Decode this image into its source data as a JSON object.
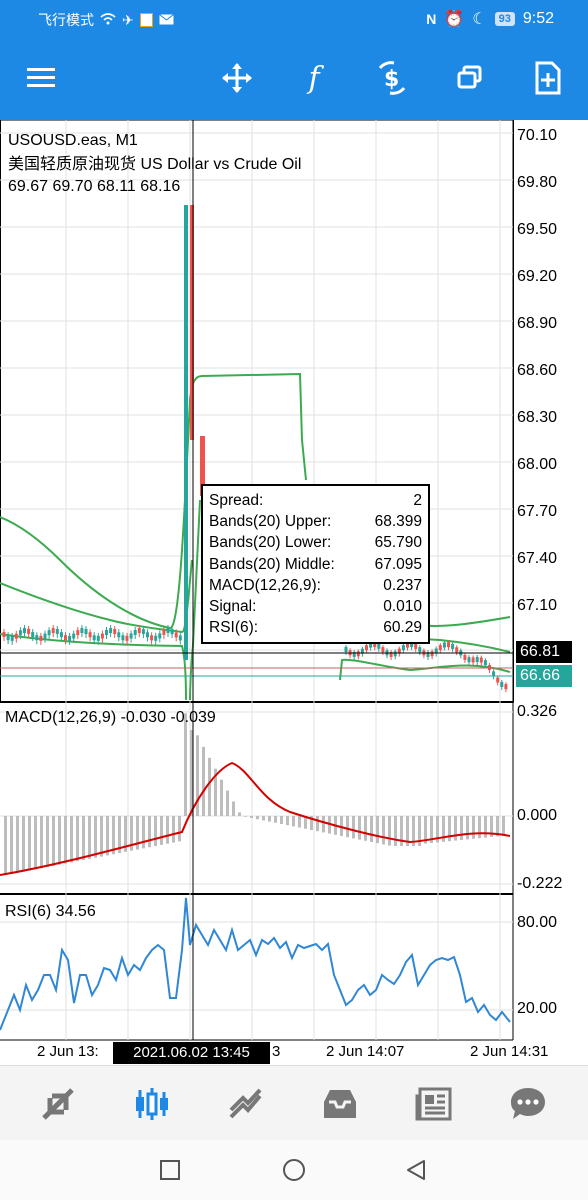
{
  "status_bar": {
    "left_text": "飞行模式",
    "battery": "93",
    "time": "9:52"
  },
  "toolbar": {
    "icons": [
      "menu-icon",
      "crosshair-move-icon",
      "function-icon",
      "trade-dollar-icon",
      "windows-icon",
      "new-document-icon"
    ]
  },
  "chart": {
    "symbol": "USOUSD.eas, M1",
    "description": "美国轻质原油现货 US Dollar vs Crude Oil",
    "ohlc": "69.67 69.70 68.11 68.16",
    "price_axis": [
      "70.10",
      "69.80",
      "69.50",
      "69.20",
      "68.90",
      "68.60",
      "68.30",
      "68.00",
      "67.70",
      "67.40",
      "67.10"
    ],
    "bid_tag": "66.81",
    "ask_tag": "66.66",
    "macd_label": "MACD(12,26,9) -0.030 -0.039",
    "macd_axis": [
      "0.326",
      "0.000",
      "-0.222"
    ],
    "rsi_label": "RSI(6) 34.56",
    "rsi_axis": [
      "80.00",
      "20.00"
    ],
    "time_axis": [
      "2 Jun 13:",
      "3",
      "2 Jun 14:07",
      "2 Jun 14:31"
    ],
    "crosshair_date": "2021.06.02 13:45",
    "colors": {
      "bull": "#26a69a",
      "bear": "#ef5350",
      "bands": "#3cab4f",
      "macd_signal": "#d50000",
      "macd_hist": "#bdbdbd",
      "rsi": "#2f87d6",
      "ask_tag": "#26a69a"
    }
  },
  "tooltip": {
    "rows": [
      {
        "label": "Spread:",
        "value": "2"
      },
      {
        "label": "Bands(20) Upper:",
        "value": "68.399"
      },
      {
        "label": "Bands(20) Lower:",
        "value": "65.790"
      },
      {
        "label": "Bands(20) Middle:",
        "value": "67.095"
      },
      {
        "label": "MACD(12,26,9):",
        "value": "0.237"
      },
      {
        "label": "Signal:",
        "value": "0.010"
      },
      {
        "label": "RSI(6):",
        "value": "60.29"
      }
    ]
  },
  "bottom_nav": {
    "icons": [
      "quotes-icon",
      "chart-icon",
      "trade-icon",
      "history-icon",
      "news-icon",
      "chat-icon"
    ],
    "active": "chart-icon"
  }
}
